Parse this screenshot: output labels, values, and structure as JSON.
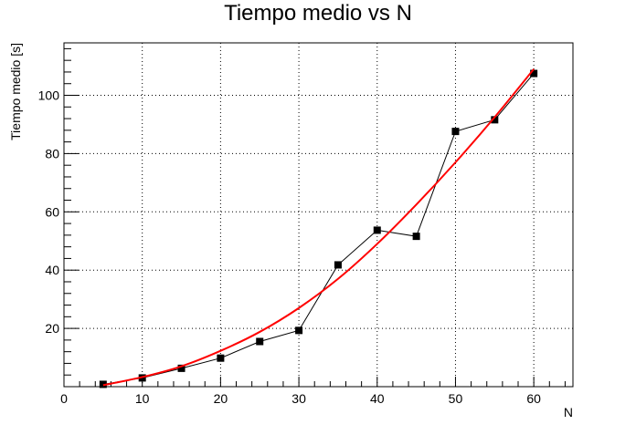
{
  "chart_data": {
    "type": "line",
    "title": "Tiempo medio vs N",
    "xlabel": "N",
    "ylabel": "Tiempo medio [s]",
    "xlim": [
      0,
      65
    ],
    "ylim": [
      0,
      118
    ],
    "x_ticks": [
      0,
      10,
      20,
      30,
      40,
      50,
      60
    ],
    "y_ticks": [
      20,
      40,
      60,
      80,
      100
    ],
    "grid": true,
    "series": [
      {
        "kind": "data",
        "marker": "square",
        "color": "#000000",
        "x": [
          5,
          10,
          15,
          20,
          25,
          30,
          35,
          40,
          45,
          50,
          55,
          60
        ],
        "y": [
          0.8,
          3.0,
          6.3,
          9.8,
          15.5,
          19.3,
          41.8,
          53.7,
          51.6,
          87.6,
          91.6,
          107.5
        ]
      },
      {
        "kind": "fit",
        "color": "#ff0000",
        "x": [
          5,
          10,
          15,
          20,
          25,
          30,
          35,
          40,
          45,
          50,
          55,
          60
        ],
        "y": [
          0.5,
          3.3,
          7.0,
          12.3,
          18.8,
          27.0,
          37.0,
          49.0,
          62.5,
          77.0,
          92.5,
          109.0
        ]
      }
    ]
  }
}
